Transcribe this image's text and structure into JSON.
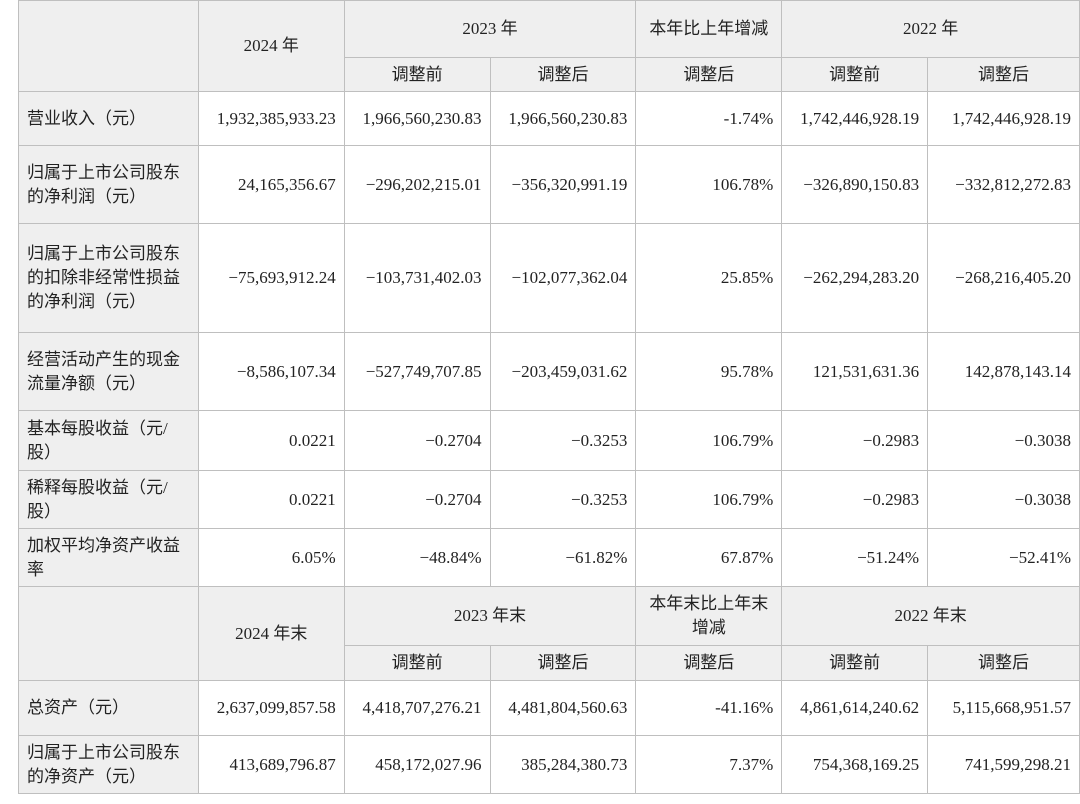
{
  "table1": {
    "header": {
      "y2024": "2024 年",
      "y2023": "2023 年",
      "change": "本年比上年增减",
      "y2022": "2022 年",
      "before": "调整前",
      "after": "调整后"
    },
    "rows": [
      {
        "label": "营业收入（元）",
        "v2024": "1,932,385,933.23",
        "v2023a": "1,966,560,230.83",
        "v2023b": "1,966,560,230.83",
        "chg": "-1.74%",
        "v2022a": "1,742,446,928.19",
        "v2022b": "1,742,446,928.19"
      },
      {
        "label": "归属于上市公司股东的净利润（元）",
        "v2024": "24,165,356.67",
        "v2023a": "−296,202,215.01",
        "v2023b": "−356,320,991.19",
        "chg": "106.78%",
        "v2022a": "−326,890,150.83",
        "v2022b": "−332,812,272.83"
      },
      {
        "label": "归属于上市公司股东的扣除非经常性损益的净利润（元）",
        "v2024": "−75,693,912.24",
        "v2023a": "−103,731,402.03",
        "v2023b": "−102,077,362.04",
        "chg": "25.85%",
        "v2022a": "−262,294,283.20",
        "v2022b": "−268,216,405.20"
      },
      {
        "label": "经营活动产生的现金流量净额（元）",
        "v2024": "−8,586,107.34",
        "v2023a": "−527,749,707.85",
        "v2023b": "−203,459,031.62",
        "chg": "95.78%",
        "v2022a": "121,531,631.36",
        "v2022b": "142,878,143.14"
      },
      {
        "label": "基本每股收益（元/股）",
        "v2024": "0.0221",
        "v2023a": "−0.2704",
        "v2023b": "−0.3253",
        "chg": "106.79%",
        "v2022a": "−0.2983",
        "v2022b": "−0.3038"
      },
      {
        "label": "稀释每股收益（元/股）",
        "v2024": "0.0221",
        "v2023a": "−0.2704",
        "v2023b": "−0.3253",
        "chg": "106.79%",
        "v2022a": "−0.2983",
        "v2022b": "−0.3038"
      },
      {
        "label": "加权平均净资产收益率",
        "v2024": "6.05%",
        "v2023a": "−48.84%",
        "v2023b": "−61.82%",
        "chg": "67.87%",
        "v2022a": "−51.24%",
        "v2022b": "−52.41%"
      }
    ]
  },
  "table2": {
    "header": {
      "y2024": "2024 年末",
      "y2023": "2023 年末",
      "change": "本年末比上年末增减",
      "y2022": "2022 年末",
      "before": "调整前",
      "after": "调整后"
    },
    "rows": [
      {
        "label": "总资产（元）",
        "v2024": "2,637,099,857.58",
        "v2023a": "4,418,707,276.21",
        "v2023b": "4,481,804,560.63",
        "chg": "-41.16%",
        "v2022a": "4,861,614,240.62",
        "v2022b": "5,115,668,951.57"
      },
      {
        "label": "归属于上市公司股东的净资产（元）",
        "v2024": "413,689,796.87",
        "v2023a": "458,172,027.96",
        "v2023b": "385,284,380.73",
        "chg": "7.37%",
        "v2022a": "754,368,169.25",
        "v2022b": "741,599,298.21"
      }
    ]
  }
}
